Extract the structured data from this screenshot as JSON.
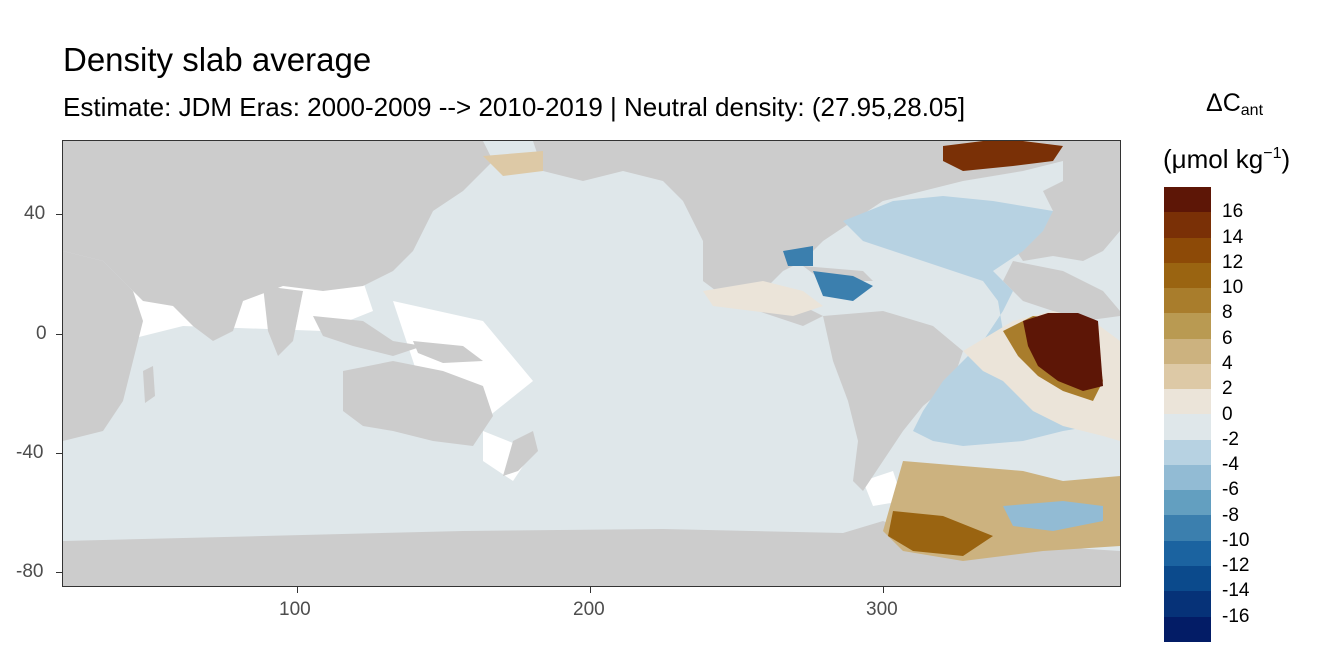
{
  "title": "Density slab average",
  "subtitle": "Estimate: JDM Eras: 2000-2009 --> 2010-2019 | Neutral density: (27.95,28.05]",
  "legend": {
    "title_symbol": "ΔC",
    "title_subscript": "ant",
    "unit_prefix": "(μmol kg",
    "unit_exponent": "−1",
    "unit_suffix": ")",
    "labels": [
      "16",
      "14",
      "12",
      "10",
      "8",
      "6",
      "4",
      "2",
      "0",
      "-2",
      "-4",
      "-6",
      "-8",
      "-10",
      "-12",
      "-14",
      "-16"
    ],
    "colors": [
      "#5d1606",
      "#7a3006",
      "#8d4a07",
      "#9a6411",
      "#a97d2c",
      "#b99a52",
      "#ccb27f",
      "#ddc9a6",
      "#ebe4d9",
      "#dfe7ea",
      "#b7d2e2",
      "#92bbd4",
      "#639fc0",
      "#3b7fae",
      "#1b63a0",
      "#0b4a8c",
      "#063278",
      "#031c66"
    ]
  },
  "axes": {
    "x_ticks": [
      "100",
      "200",
      "300"
    ],
    "y_ticks": [
      "40",
      "0",
      "-40",
      "-80"
    ]
  },
  "colors": {
    "land": "#cccccc",
    "ocean_near_zero": "#dfe7ea",
    "frame": "#333333",
    "axis_text": "#4d4d4d"
  }
}
